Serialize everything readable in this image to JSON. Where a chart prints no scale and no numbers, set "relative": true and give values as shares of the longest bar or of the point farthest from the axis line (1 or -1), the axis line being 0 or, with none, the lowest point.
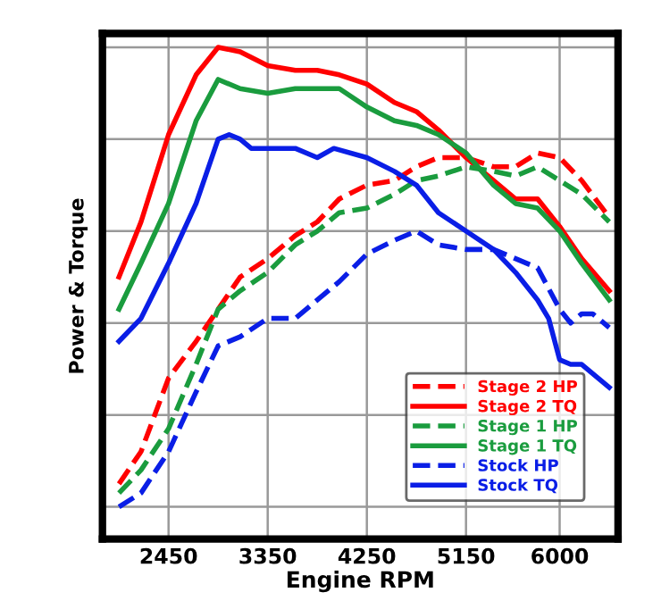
{
  "chart_data": {
    "type": "line",
    "relative": true,
    "xlabel": "Engine RPM",
    "ylabel": "Power & Torque",
    "xlim": [
      1850,
      6530
    ],
    "xticks": [
      2450,
      3350,
      4250,
      5150,
      6000
    ],
    "grid": true,
    "legend": "bottom right",
    "tick_labels": "x",
    "series": [
      {
        "name": "Stage 2 HP",
        "color": "#ff0000",
        "line_style": "dashed",
        "x": [
          2000,
          2200,
          2450,
          2700,
          2900,
          3100,
          3350,
          3600,
          3800,
          4000,
          4250,
          4500,
          4700,
          4900,
          5150,
          5400,
          5600,
          5800,
          6000,
          6200,
          6450
        ],
        "values": [
          0.05,
          0.12,
          0.28,
          0.36,
          0.43,
          0.5,
          0.54,
          0.59,
          0.62,
          0.67,
          0.7,
          0.71,
          0.74,
          0.76,
          0.76,
          0.74,
          0.74,
          0.77,
          0.76,
          0.71,
          0.63
        ]
      },
      {
        "name": "Stage 2 TQ",
        "color": "#ff0000",
        "line_style": "solid",
        "x": [
          2000,
          2200,
          2450,
          2700,
          2900,
          3100,
          3350,
          3600,
          3800,
          4000,
          4250,
          4500,
          4700,
          4900,
          5150,
          5400,
          5600,
          5800,
          6000,
          6200,
          6450
        ],
        "values": [
          0.5,
          0.62,
          0.81,
          0.94,
          1.0,
          0.99,
          0.96,
          0.95,
          0.95,
          0.94,
          0.92,
          0.88,
          0.86,
          0.82,
          0.76,
          0.71,
          0.67,
          0.67,
          0.61,
          0.54,
          0.47
        ]
      },
      {
        "name": "Stage 1 HP",
        "color": "#1a9c3e",
        "line_style": "dashed",
        "x": [
          2000,
          2200,
          2450,
          2700,
          2900,
          3100,
          3350,
          3600,
          3800,
          4000,
          4250,
          4500,
          4700,
          4900,
          5150,
          5400,
          5600,
          5800,
          6000,
          6200,
          6450
        ],
        "values": [
          0.03,
          0.08,
          0.17,
          0.31,
          0.43,
          0.47,
          0.51,
          0.57,
          0.6,
          0.64,
          0.65,
          0.68,
          0.71,
          0.72,
          0.74,
          0.73,
          0.72,
          0.74,
          0.71,
          0.68,
          0.62
        ]
      },
      {
        "name": "Stage 1 TQ",
        "color": "#1a9c3e",
        "line_style": "solid",
        "x": [
          2000,
          2200,
          2450,
          2700,
          2900,
          3100,
          3350,
          3600,
          3800,
          4000,
          4250,
          4500,
          4700,
          4900,
          5150,
          5400,
          5600,
          5800,
          6000,
          6200,
          6450
        ],
        "values": [
          0.43,
          0.53,
          0.66,
          0.84,
          0.93,
          0.91,
          0.9,
          0.91,
          0.91,
          0.91,
          0.87,
          0.84,
          0.83,
          0.81,
          0.77,
          0.7,
          0.66,
          0.65,
          0.6,
          0.53,
          0.45
        ]
      },
      {
        "name": "Stock HP",
        "color": "#0a1ee6",
        "line_style": "dashed",
        "x": [
          2000,
          2200,
          2450,
          2700,
          2900,
          3100,
          3350,
          3600,
          3800,
          4000,
          4250,
          4500,
          4700,
          4900,
          5150,
          5400,
          5600,
          5800,
          6000,
          6100,
          6200,
          6300,
          6450
        ],
        "values": [
          0,
          0.03,
          0.12,
          0.25,
          0.35,
          0.37,
          0.41,
          0.41,
          0.45,
          0.49,
          0.55,
          0.58,
          0.6,
          0.57,
          0.56,
          0.56,
          0.54,
          0.52,
          0.43,
          0.4,
          0.42,
          0.42,
          0.39
        ]
      },
      {
        "name": "Stock TQ",
        "color": "#0a1ee6",
        "line_style": "solid",
        "x": [
          2000,
          2200,
          2450,
          2700,
          2900,
          3000,
          3100,
          3200,
          3350,
          3600,
          3800,
          3950,
          4250,
          4500,
          4700,
          4900,
          5150,
          5400,
          5600,
          5800,
          5900,
          6000,
          6100,
          6200,
          6450
        ],
        "values": [
          0.36,
          0.41,
          0.53,
          0.66,
          0.8,
          0.81,
          0.8,
          0.78,
          0.78,
          0.78,
          0.76,
          0.78,
          0.76,
          0.73,
          0.7,
          0.64,
          0.6,
          0.56,
          0.51,
          0.45,
          0.41,
          0.32,
          0.31,
          0.31,
          0.26
        ]
      }
    ]
  }
}
